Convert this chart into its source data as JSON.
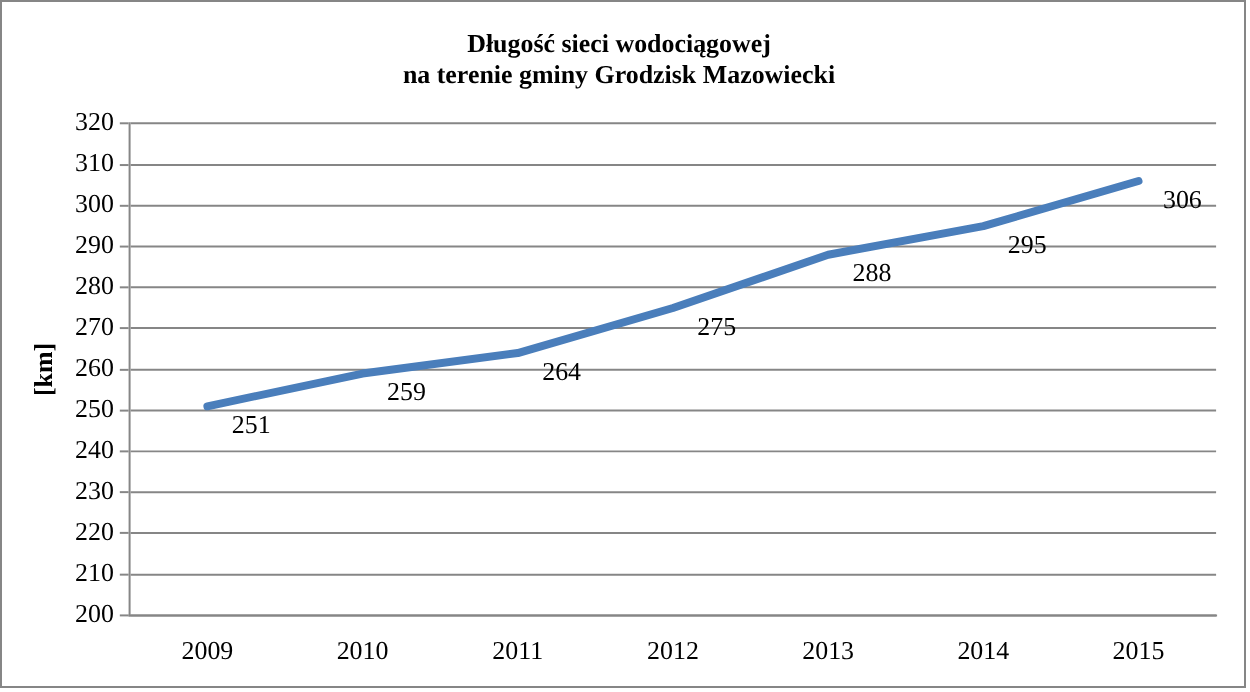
{
  "chart_data": {
    "type": "line",
    "title": "Długość sieci wodociągowej\nna terenie gminy Grodzisk Mazowiecki",
    "ylabel": "[km]",
    "categories": [
      "2009",
      "2010",
      "2011",
      "2012",
      "2013",
      "2014",
      "2015"
    ],
    "series": [
      {
        "color": "#4a7ebb",
        "values": [
          251,
          259,
          264,
          275,
          288,
          295,
          306
        ]
      }
    ],
    "ylim": [
      200,
      320
    ],
    "yticks": [
      200,
      210,
      220,
      230,
      240,
      250,
      260,
      270,
      280,
      290,
      300,
      310,
      320
    ],
    "grid": "y",
    "marker": "none",
    "line_style": "solid",
    "data_labels": true
  }
}
